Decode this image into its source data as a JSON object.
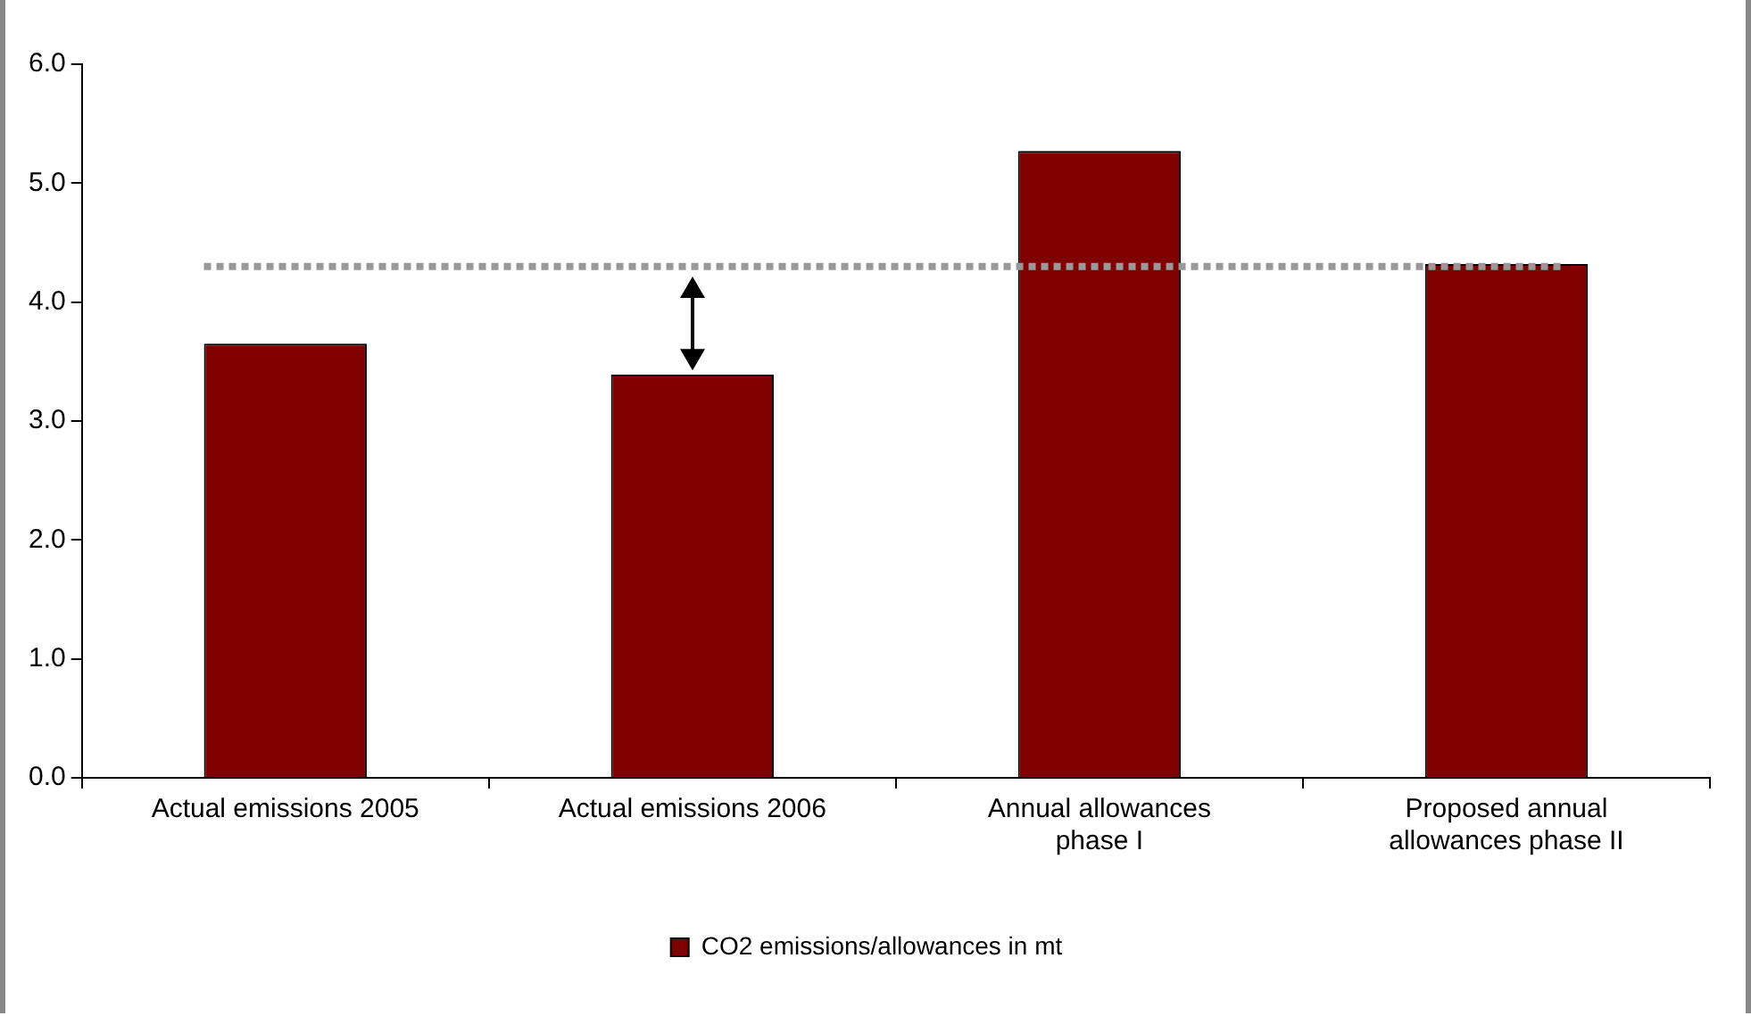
{
  "chart_data": {
    "type": "bar",
    "categories": [
      "Actual emissions 2005",
      "Actual emissions 2006",
      "Annual allowances phase I",
      "Proposed annual allowances phase II"
    ],
    "series": [
      {
        "name": "CO2 emissions/allowances in mt",
        "color": "#800000",
        "values": [
          3.65,
          3.39,
          5.27,
          4.32
        ]
      }
    ],
    "ylim": [
      0,
      6
    ],
    "yticks": [
      {
        "value": 0,
        "label": "0.0"
      },
      {
        "value": 1,
        "label": "1.0"
      },
      {
        "value": 2,
        "label": "2.0"
      },
      {
        "value": 3,
        "label": "3.0"
      },
      {
        "value": 4,
        "label": "4.0"
      },
      {
        "value": 5,
        "label": "5.0"
      },
      {
        "value": 6,
        "label": "6.0"
      }
    ],
    "ref_lines": [
      {
        "axis": "y",
        "value": 4.3,
        "color": "#999999",
        "line_style": "dotted"
      }
    ],
    "grid": false,
    "legend": "bottom"
  }
}
